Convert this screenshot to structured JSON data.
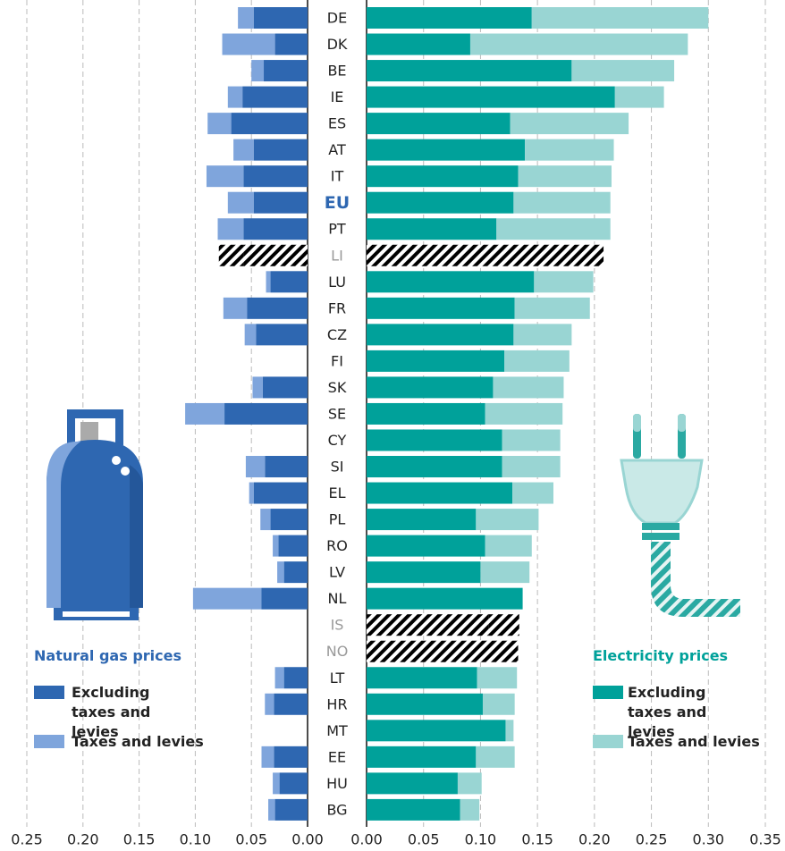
{
  "chart_data": {
    "type": "butterfly",
    "categories": [
      "DE",
      "DK",
      "BE",
      "IE",
      "ES",
      "AT",
      "IT",
      "EU",
      "PT",
      "LI",
      "LU",
      "FR",
      "CZ",
      "FI",
      "SK",
      "SE",
      "CY",
      "SI",
      "EL",
      "PL",
      "RO",
      "LV",
      "NL",
      "IS",
      "NO",
      "LT",
      "HR",
      "MT",
      "EE",
      "HU",
      "BG"
    ],
    "highlight_category": "EU",
    "hatched_categories": [
      "LI",
      "IS",
      "NO"
    ],
    "grid": true,
    "panels": [
      {
        "title": "Natural gas prices",
        "title_color": "#2e67b1",
        "direction": "left",
        "xlim": [
          0,
          0.25
        ],
        "xticks": [
          0.25,
          {
            "value": 0.2,
            "label": "0.20"
          },
          {
            "value": 0.15,
            "label": "0.15"
          },
          {
            "value": 0.1,
            "label": "0.10"
          },
          {
            "value": 0.05,
            "label": "0.05"
          },
          {
            "value": 0,
            "label": "0.00"
          }
        ],
        "series": [
          {
            "name": "Excluding taxes and levies",
            "color": "#2e67b1",
            "values": [
              0.048,
              0.029,
              0.039,
              0.058,
              0.068,
              0.048,
              0.057,
              0.048,
              0.057,
              0.057,
              0.033,
              0.054,
              0.046,
              null,
              0.04,
              0.074,
              null,
              0.038,
              0.048,
              0.033,
              0.026,
              0.021,
              0.041,
              null,
              null,
              0.021,
              0.03,
              null,
              0.03,
              0.025,
              0.029
            ]
          },
          {
            "name": "Taxes and levies",
            "color": "#7fa5dc",
            "values": [
              0.014,
              0.047,
              0.011,
              0.013,
              0.021,
              0.018,
              0.033,
              0.023,
              0.023,
              0.022,
              0.004,
              0.021,
              0.01,
              null,
              0.009,
              0.035,
              null,
              0.017,
              0.004,
              0.009,
              0.005,
              0.006,
              0.061,
              null,
              null,
              0.008,
              0.008,
              null,
              0.011,
              0.006,
              0.006
            ]
          }
        ]
      },
      {
        "title": "Electricity prices",
        "title_color": "#00a19a",
        "direction": "right",
        "xlim": [
          0,
          0.35
        ],
        "xticks": [
          {
            "value": 0,
            "label": "0.00"
          },
          {
            "value": 0.05,
            "label": "0.05"
          },
          {
            "value": 0.1,
            "label": "0.10"
          },
          {
            "value": 0.15,
            "label": "0.15"
          },
          {
            "value": 0.2,
            "label": "0.20"
          },
          0.25,
          {
            "value": 0.3,
            "label": "0.30"
          },
          0.35
        ],
        "series": [
          {
            "name": "Excluding taxes and levies",
            "color": "#00a19a",
            "values": [
              0.145,
              0.091,
              0.18,
              0.218,
              0.126,
              0.139,
              0.133,
              0.129,
              0.114,
              0.179,
              0.147,
              0.13,
              0.129,
              0.121,
              0.111,
              0.104,
              0.119,
              0.119,
              0.128,
              0.096,
              0.104,
              0.1,
              0.137,
              0.107,
              0.093,
              0.097,
              0.102,
              0.122,
              0.096,
              0.08,
              0.082
            ]
          },
          {
            "name": "Taxes and levies",
            "color": "#99d5d3",
            "values": [
              0.155,
              0.191,
              0.09,
              0.043,
              0.104,
              0.078,
              0.082,
              0.085,
              0.1,
              0.029,
              0.052,
              0.066,
              0.051,
              0.057,
              0.062,
              0.068,
              0.051,
              0.051,
              0.036,
              0.055,
              0.041,
              0.043,
              0,
              0.027,
              0.04,
              0.035,
              0.028,
              0.007,
              0.034,
              0.021,
              0.017
            ]
          }
        ]
      }
    ]
  }
}
